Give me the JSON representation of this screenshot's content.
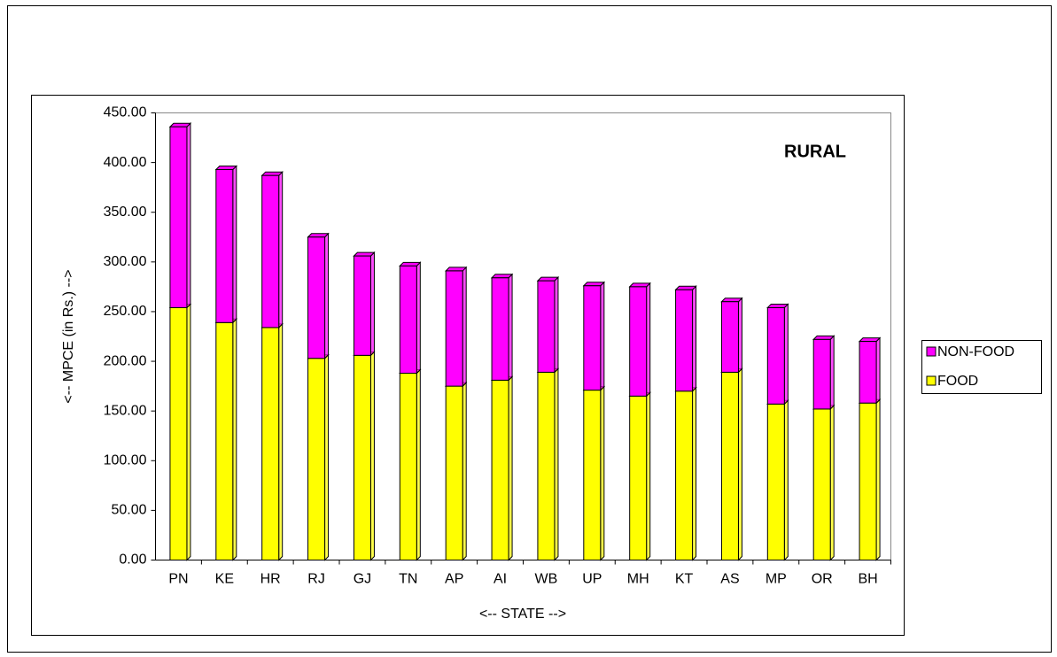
{
  "chart_data": {
    "type": "stacked_bar",
    "annotation": "RURAL",
    "x_label": "<-- STATE -->",
    "y_label": "<-- MPCE (in Rs.) -->",
    "categories": [
      "PN",
      "KE",
      "HR",
      "RJ",
      "GJ",
      "TN",
      "AP",
      "AI",
      "WB",
      "UP",
      "MH",
      "KT",
      "AS",
      "MP",
      "OR",
      "BH"
    ],
    "series": [
      {
        "name": "FOOD",
        "color": "#ffff00",
        "values": [
          254,
          239,
          234,
          203,
          206,
          188,
          175,
          181,
          189,
          171,
          165,
          170,
          189,
          157,
          152,
          158
        ]
      },
      {
        "name": "NON-FOOD",
        "color": "#ff00ff",
        "values": [
          182,
          154,
          153,
          122,
          100,
          108,
          116,
          103,
          92,
          105,
          110,
          102,
          71,
          97,
          70,
          62
        ]
      }
    ],
    "ylim": [
      0,
      450
    ],
    "yticks": [
      {
        "value": 0,
        "label": "0.00"
      },
      {
        "value": 50,
        "label": "50.00"
      },
      {
        "value": 100,
        "label": "100.00"
      },
      {
        "value": 150,
        "label": "150.00"
      },
      {
        "value": 200,
        "label": "200.00"
      },
      {
        "value": 250,
        "label": "250.00"
      },
      {
        "value": 300,
        "label": "300.00"
      },
      {
        "value": 350,
        "label": "350.00"
      },
      {
        "value": 400,
        "label": "400.00"
      },
      {
        "value": 450,
        "label": "450.00"
      }
    ],
    "legend": "right"
  }
}
